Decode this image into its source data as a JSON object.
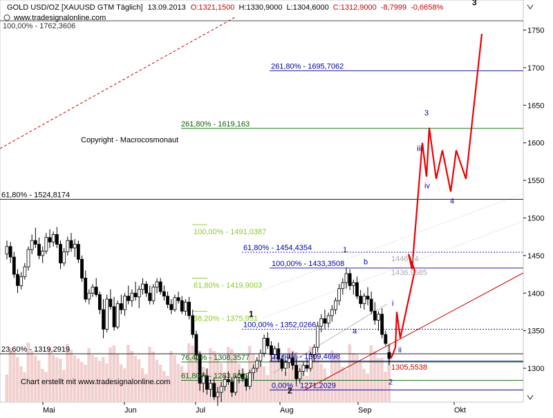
{
  "header": {
    "instrument": "GOLD USD/OZ [XAUUSD GTM  Täglich]",
    "date": "13.09.2013",
    "open": "O:1321,1500",
    "high": "H:1330,9000",
    "low": "L:1304,6000",
    "close": "C:1312,9000",
    "change": "-8,7999",
    "change_pct": "-0,6658%",
    "url": "www.tradesignalonline.com",
    "colors": {
      "text": "#000000",
      "down": "#cc0000",
      "price_up": "#ffffff",
      "price_down": "#000000"
    }
  },
  "copyright": "Copyright - Macrocosmonaut",
  "footer_credit": "Chart erstellt mit www.tradesignalonline.com",
  "chart_data": {
    "type": "candlestick",
    "y_axis": {
      "min": 1255,
      "max": 1790,
      "ticks": [
        1300,
        1350,
        1400,
        1450,
        1500,
        1550,
        1600,
        1650,
        1700,
        1750
      ]
    },
    "x_axis": {
      "labels": [
        "Mai",
        "Jun",
        "Jul",
        "Aug",
        "Sep",
        "Okt"
      ]
    },
    "candles": [
      [
        1452,
        1470,
        1445,
        1462
      ],
      [
        1462,
        1468,
        1440,
        1448
      ],
      [
        1448,
        1455,
        1420,
        1425
      ],
      [
        1425,
        1432,
        1400,
        1410
      ],
      [
        1410,
        1428,
        1405,
        1422
      ],
      [
        1422,
        1440,
        1418,
        1435
      ],
      [
        1435,
        1462,
        1430,
        1458
      ],
      [
        1458,
        1478,
        1452,
        1470
      ],
      [
        1470,
        1487,
        1460,
        1465
      ],
      [
        1465,
        1474,
        1445,
        1450
      ],
      [
        1450,
        1462,
        1440,
        1456
      ],
      [
        1456,
        1480,
        1452,
        1474
      ],
      [
        1474,
        1485,
        1460,
        1468
      ],
      [
        1468,
        1482,
        1462,
        1478
      ],
      [
        1478,
        1488,
        1460,
        1465
      ],
      [
        1465,
        1470,
        1432,
        1440
      ],
      [
        1440,
        1460,
        1436,
        1455
      ],
      [
        1455,
        1475,
        1450,
        1470
      ],
      [
        1470,
        1480,
        1455,
        1460
      ],
      [
        1460,
        1472,
        1448,
        1465
      ],
      [
        1465,
        1470,
        1440,
        1445
      ],
      [
        1445,
        1450,
        1415,
        1420
      ],
      [
        1420,
        1430,
        1388,
        1392
      ],
      [
        1392,
        1405,
        1385,
        1400
      ],
      [
        1400,
        1412,
        1395,
        1408
      ],
      [
        1408,
        1420,
        1395,
        1398
      ],
      [
        1398,
        1402,
        1372,
        1378
      ],
      [
        1378,
        1392,
        1340,
        1352
      ],
      [
        1352,
        1398,
        1348,
        1392
      ],
      [
        1392,
        1405,
        1378,
        1382
      ],
      [
        1382,
        1395,
        1350,
        1355
      ],
      [
        1355,
        1390,
        1352,
        1386
      ],
      [
        1386,
        1398,
        1372,
        1378
      ],
      [
        1378,
        1400,
        1370,
        1396
      ],
      [
        1396,
        1410,
        1385,
        1390
      ],
      [
        1390,
        1405,
        1382,
        1400
      ],
      [
        1400,
        1415,
        1390,
        1395
      ],
      [
        1395,
        1410,
        1380,
        1405
      ],
      [
        1405,
        1420,
        1398,
        1412
      ],
      [
        1412,
        1416,
        1395,
        1400
      ],
      [
        1400,
        1410,
        1385,
        1390
      ],
      [
        1390,
        1412,
        1385,
        1408
      ],
      [
        1408,
        1420,
        1400,
        1415
      ],
      [
        1415,
        1420,
        1398,
        1402
      ],
      [
        1402,
        1410,
        1390,
        1396
      ],
      [
        1396,
        1402,
        1380,
        1385
      ],
      [
        1385,
        1392,
        1372,
        1378
      ],
      [
        1378,
        1398,
        1375,
        1394
      ],
      [
        1394,
        1402,
        1386,
        1390
      ],
      [
        1390,
        1396,
        1372,
        1376
      ],
      [
        1376,
        1392,
        1370,
        1388
      ],
      [
        1388,
        1395,
        1365,
        1370
      ],
      [
        1370,
        1378,
        1340,
        1345
      ],
      [
        1345,
        1350,
        1310,
        1318
      ],
      [
        1318,
        1322,
        1270,
        1280
      ],
      [
        1280,
        1295,
        1268,
        1290
      ],
      [
        1290,
        1300,
        1265,
        1272
      ],
      [
        1272,
        1285,
        1262,
        1280
      ],
      [
        1280,
        1288,
        1258,
        1262
      ],
      [
        1262,
        1275,
        1250,
        1268
      ],
      [
        1268,
        1282,
        1255,
        1276
      ],
      [
        1276,
        1290,
        1270,
        1285
      ],
      [
        1285,
        1296,
        1278,
        1282
      ],
      [
        1282,
        1288,
        1262,
        1268
      ],
      [
        1268,
        1290,
        1264,
        1288
      ],
      [
        1288,
        1298,
        1280,
        1292
      ],
      [
        1292,
        1300,
        1282,
        1286
      ],
      [
        1286,
        1292,
        1270,
        1276
      ],
      [
        1276,
        1298,
        1272,
        1294
      ],
      [
        1294,
        1305,
        1285,
        1300
      ],
      [
        1300,
        1315,
        1295,
        1310
      ],
      [
        1310,
        1325,
        1302,
        1320
      ],
      [
        1320,
        1345,
        1315,
        1340
      ],
      [
        1340,
        1348,
        1326,
        1330
      ],
      [
        1330,
        1336,
        1310,
        1318
      ],
      [
        1318,
        1330,
        1312,
        1326
      ],
      [
        1326,
        1334,
        1308,
        1312
      ],
      [
        1312,
        1318,
        1296,
        1300
      ],
      [
        1300,
        1312,
        1290,
        1308
      ],
      [
        1308,
        1318,
        1300,
        1314
      ],
      [
        1314,
        1322,
        1298,
        1304
      ],
      [
        1304,
        1312,
        1278,
        1286
      ],
      [
        1286,
        1300,
        1280,
        1296
      ],
      [
        1296,
        1308,
        1290,
        1304
      ],
      [
        1304,
        1312,
        1295,
        1300
      ],
      [
        1300,
        1322,
        1296,
        1318
      ],
      [
        1318,
        1332,
        1310,
        1328
      ],
      [
        1328,
        1362,
        1322,
        1356
      ],
      [
        1356,
        1372,
        1348,
        1366
      ],
      [
        1366,
        1378,
        1352,
        1360
      ],
      [
        1360,
        1374,
        1354,
        1370
      ],
      [
        1370,
        1384,
        1362,
        1378
      ],
      [
        1378,
        1394,
        1372,
        1390
      ],
      [
        1390,
        1412,
        1384,
        1406
      ],
      [
        1406,
        1420,
        1398,
        1414
      ],
      [
        1414,
        1434,
        1406,
        1426
      ],
      [
        1426,
        1432,
        1404,
        1410
      ],
      [
        1410,
        1418,
        1398,
        1414
      ],
      [
        1414,
        1422,
        1392,
        1396
      ],
      [
        1396,
        1404,
        1380,
        1386
      ],
      [
        1386,
        1400,
        1378,
        1396
      ],
      [
        1396,
        1408,
        1384,
        1392
      ],
      [
        1392,
        1402,
        1372,
        1376
      ],
      [
        1376,
        1388,
        1358,
        1364
      ],
      [
        1364,
        1376,
        1350,
        1372
      ],
      [
        1372,
        1380,
        1340,
        1345
      ],
      [
        1345,
        1350,
        1330,
        1333
      ],
      [
        1321,
        1331,
        1304,
        1313
      ]
    ],
    "projection": [
      [
        1313,
        1318
      ],
      [
        1318,
        1328
      ],
      [
        1328,
        1375
      ],
      [
        1375,
        1340
      ],
      [
        1340,
        1430
      ],
      [
        1430,
        1452
      ],
      [
        1452,
        1432
      ],
      [
        1432,
        1600
      ],
      [
        1600,
        1555
      ],
      [
        1555,
        1620
      ],
      [
        1620,
        1552
      ],
      [
        1552,
        1590
      ],
      [
        1590,
        1535
      ],
      [
        1535,
        1590
      ],
      [
        1590,
        1552
      ],
      [
        1552,
        1745
      ]
    ],
    "fib_levels": [
      {
        "label": "100,00% - 1762,3606",
        "value": 1762.36,
        "color": "#333333"
      },
      {
        "label": "261,80% - 1695,7062",
        "value": 1695.71,
        "color": "#0000aa"
      },
      {
        "label": "261,80% - 1619,163",
        "value": 1619.16,
        "color": "#006600"
      },
      {
        "label": "61,80% - 1524,8174",
        "value": 1524.82,
        "color": "#000000"
      },
      {
        "label": "100,00% - 1491,0387",
        "value": 1491.04,
        "color": "#88cc22"
      },
      {
        "label": "61,80% - 1454,4354",
        "value": 1454.44,
        "color": "#0000aa"
      },
      {
        "label": "100,00% - 1433,3508",
        "value": 1433.35,
        "color": "#0000aa"
      },
      {
        "label": "61,80% - 1419,9003",
        "value": 1419.9,
        "color": "#88cc22"
      },
      {
        "label": "38,20% - 1375,951",
        "value": 1375.95,
        "color": "#88cc22"
      },
      {
        "label": "100,00% - 1352,0266",
        "value": 1352.03,
        "color": "#0000aa"
      },
      {
        "label": "23,60% - 1319,2919",
        "value": 1319.29,
        "color": "#000000"
      },
      {
        "label": "23,60% - 1309,4698",
        "value": 1309.47,
        "color": "#0000aa"
      },
      {
        "label": "76,40% - 1308,3577",
        "value": 1308.36,
        "color": "#006600"
      },
      {
        "label": "61,80% - 1283,8622",
        "value": 1283.86,
        "color": "#006600"
      },
      {
        "label": "0,00% - 1271,2029",
        "value": 1271.2,
        "color": "#0000aa"
      }
    ],
    "extra_labels": [
      {
        "label": "1446,14",
        "value": 1446,
        "color": "#aaaaaa"
      },
      {
        "label": "1436,9685",
        "value": 1428,
        "color": "#aaaaaa"
      },
      {
        "label": "1305,5538",
        "value": 1302,
        "color": "#cc0000"
      }
    ],
    "wave_labels": [
      {
        "label": "3",
        "value": 1787,
        "color": "#000000"
      },
      {
        "label": "3",
        "value": 1640,
        "color": "#0000aa"
      },
      {
        "label": "iii",
        "value": 1593,
        "color": "#0000aa"
      },
      {
        "label": "iv",
        "value": 1543,
        "color": "#0000aa"
      },
      {
        "label": "4",
        "value": 1523,
        "color": "#0000aa"
      },
      {
        "label": "1",
        "value": 1458,
        "color": "#0000aa"
      },
      {
        "label": "b",
        "value": 1442,
        "color": "#0000aa"
      },
      {
        "label": "i",
        "value": 1387,
        "color": "#0000aa"
      },
      {
        "label": "1",
        "value": 1372,
        "color": "#000000"
      },
      {
        "label": "a",
        "value": 1350,
        "color": "#0000aa"
      },
      {
        "label": "ii",
        "value": 1325,
        "color": "#0000aa"
      },
      {
        "label": "2",
        "value": 1282,
        "color": "#0000aa"
      },
      {
        "label": "2",
        "value": 1270,
        "color": "#000000"
      }
    ],
    "series": [
      {
        "name": "price",
        "color": "#000000"
      },
      {
        "name": "projection",
        "color": "#ee0000"
      }
    ]
  }
}
